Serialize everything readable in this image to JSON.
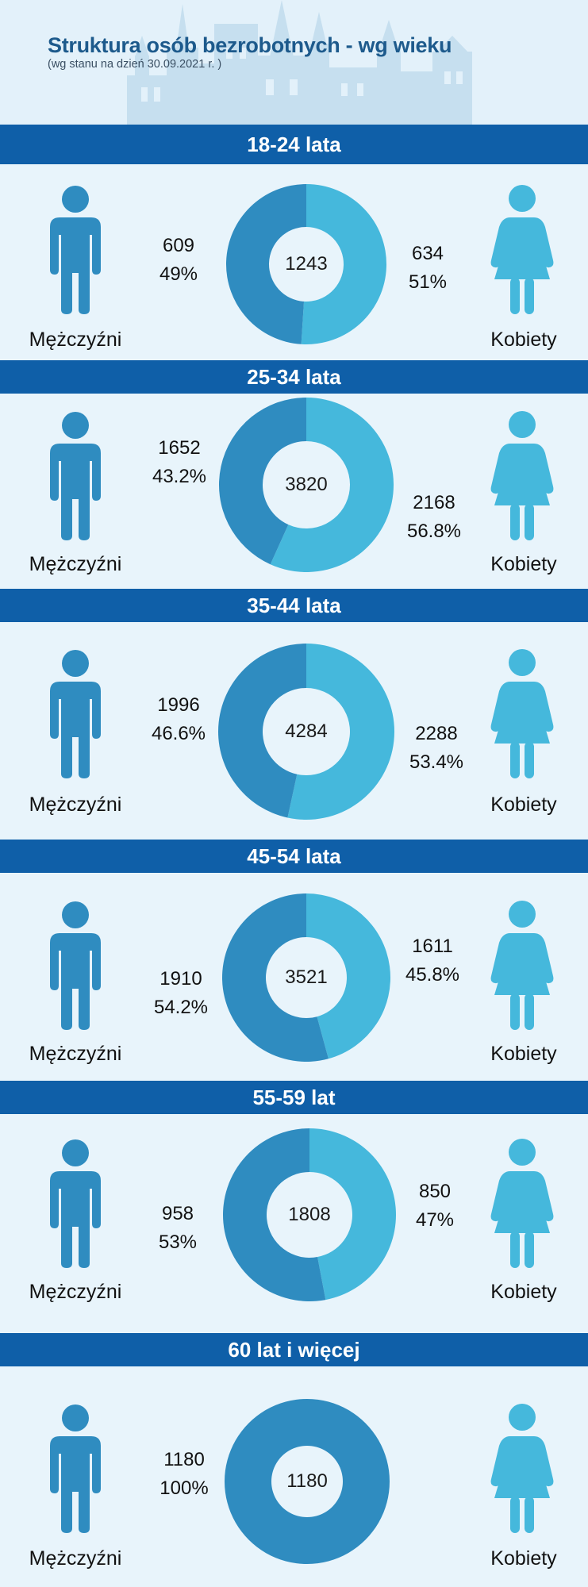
{
  "page": {
    "title": "Struktura osób bezrobotnych - wg wieku",
    "subtitle": "(wg stanu na dzień 30.09.2021 r. )"
  },
  "colors": {
    "men": "#2f8cc0",
    "women": "#45b8dc",
    "band": "#0f5fa8",
    "background": "#e8f4fb"
  },
  "chart_data": [
    {
      "type": "pie",
      "title": "18-24 lata",
      "total": "1243",
      "categories": [
        "Mężczyźni",
        "Kobiety"
      ],
      "values": [
        609,
        634
      ],
      "labels": [
        "49%",
        "51%"
      ]
    },
    {
      "type": "pie",
      "title": "25-34 lata",
      "total": "3820",
      "categories": [
        "Mężczyźni",
        "Kobiety"
      ],
      "values": [
        1652,
        2168
      ],
      "labels": [
        "43.2%",
        "56.8%"
      ]
    },
    {
      "type": "pie",
      "title": "35-44 lata",
      "total": "4284",
      "categories": [
        "Mężczyźni",
        "Kobiety"
      ],
      "values": [
        1996,
        2288
      ],
      "labels": [
        "46.6%",
        "53.4%"
      ]
    },
    {
      "type": "pie",
      "title": "45-54 lata",
      "total": "3521",
      "categories": [
        "Mężczyźni",
        "Kobiety"
      ],
      "values": [
        1910,
        1611
      ],
      "labels": [
        "54.2%",
        "45.8%"
      ]
    },
    {
      "type": "pie",
      "title": "55-59 lat",
      "total": "1808",
      "categories": [
        "Mężczyźni",
        "Kobiety"
      ],
      "values": [
        958,
        850
      ],
      "labels": [
        "53%",
        "47%"
      ]
    },
    {
      "type": "pie",
      "title": "60 lat i więcej",
      "total": "1180",
      "categories": [
        "Mężczyźni",
        "Kobiety"
      ],
      "values": [
        1180,
        0
      ],
      "labels": [
        "100%",
        ""
      ]
    }
  ]
}
